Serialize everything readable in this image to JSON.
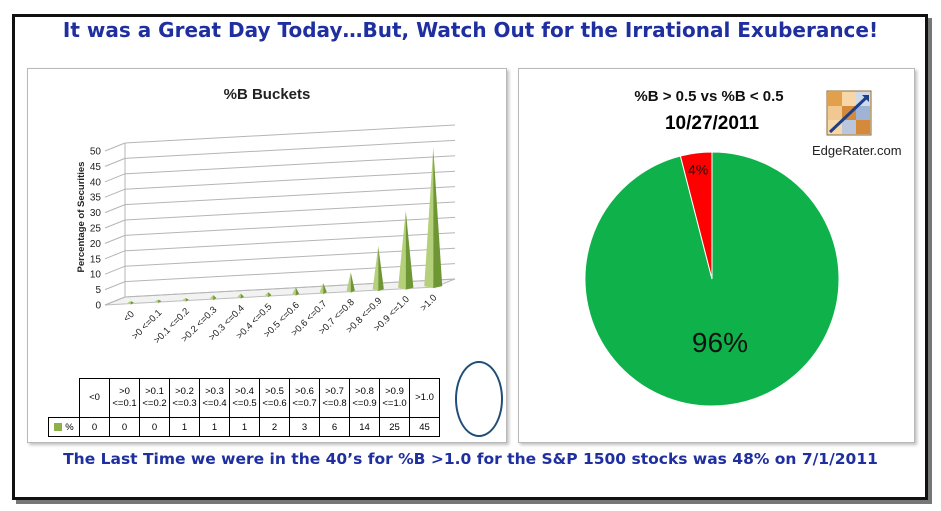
{
  "headline_top": "It was a Great Day Today…But, Watch Out for the Irrational Exuberance!",
  "headline_bottom": "The Last Time we were in the 40’s for %B >1.0 for the S&P 1500 stocks was 48% on 7/1/2011",
  "logo_text": "EdgeRater.com",
  "chart_data": [
    {
      "type": "bar",
      "title": "%B Buckets",
      "ylabel": "Percentage of Securities",
      "ylim": [
        0,
        50
      ],
      "yticks": [
        0,
        5,
        10,
        15,
        20,
        25,
        30,
        35,
        40,
        45,
        50
      ],
      "categories": [
        "<0",
        ">0 <=0.1",
        ">0.1 <=0.2",
        ">0.2 <=0.3",
        ">0.3 <=0.4",
        ">0.4 <=0.5",
        ">0.5 <=0.6",
        ">0.6 <=0.7",
        ">0.7 <=0.8",
        ">0.8 <=0.9",
        ">0.9 <=1.0",
        ">1.0"
      ],
      "series": [
        {
          "name": "%",
          "values": [
            0,
            0,
            0,
            1,
            1,
            1,
            2,
            3,
            6,
            14,
            25,
            45
          ]
        }
      ],
      "color": "#8db04a",
      "grid": true,
      "table_headers": [
        [
          "<0"
        ],
        [
          ">0",
          "<=0.1"
        ],
        [
          ">0.1",
          "<=0.2"
        ],
        [
          ">0.2",
          "<=0.3"
        ],
        [
          ">0.3",
          "<=0.4"
        ],
        [
          ">0.4",
          "<=0.5"
        ],
        [
          ">0.5",
          "<=0.6"
        ],
        [
          ">0.6",
          "<=0.7"
        ],
        [
          ">0.7",
          "<=0.8"
        ],
        [
          ">0.8",
          "<=0.9"
        ],
        [
          ">0.9",
          "<=1.0"
        ],
        [
          ">1.0"
        ]
      ]
    },
    {
      "type": "pie",
      "title": "%B > 0.5 vs %B < 0.5",
      "subtitle": "10/27/2011",
      "slices": [
        {
          "label": "96%",
          "value": 96,
          "color": "#0fb14a"
        },
        {
          "label": "4%",
          "value": 4,
          "color": "#ff0000"
        }
      ]
    }
  ]
}
